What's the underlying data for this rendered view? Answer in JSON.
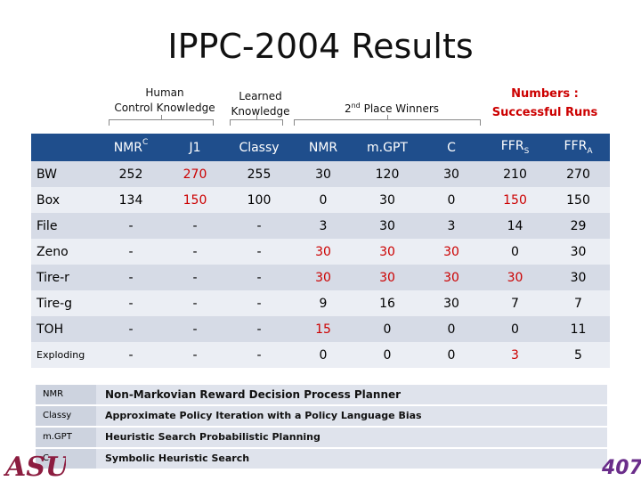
{
  "title": "IPPC-2004 Results",
  "headers": {
    "human_line1": "Human",
    "human_line2": "Control Knowledge",
    "learned_line1": "Learned",
    "learned_line2": "Knowledge",
    "second_place_sup": "nd",
    "second_place_pre": "2",
    "second_place_post": " Place Winners",
    "numbers_line1": "Numbers :",
    "numbers_line2": "Successful Runs"
  },
  "columns": [
    {
      "label": "NMR",
      "sup": "C",
      "sub": ""
    },
    {
      "label": "J1",
      "sup": "",
      "sub": ""
    },
    {
      "label": "Classy",
      "sup": "",
      "sub": ""
    },
    {
      "label": "NMR",
      "sup": "",
      "sub": ""
    },
    {
      "label": "m.GPT",
      "sup": "",
      "sub": ""
    },
    {
      "label": "C",
      "sup": "",
      "sub": ""
    },
    {
      "label": "FFR",
      "sup": "",
      "sub": "S"
    },
    {
      "label": "FFR",
      "sup": "",
      "sub": "A"
    }
  ],
  "rows": [
    {
      "name": "BW",
      "values": [
        "252",
        "270",
        "255",
        "30",
        "120",
        "30",
        "210",
        "270"
      ],
      "red": [
        1
      ]
    },
    {
      "name": "Box",
      "values": [
        "134",
        "150",
        "100",
        "0",
        "30",
        "0",
        "150",
        "150"
      ],
      "red": [
        1,
        6
      ]
    },
    {
      "name": "File",
      "values": [
        "-",
        "-",
        "-",
        "3",
        "30",
        "3",
        "14",
        "29"
      ],
      "red": []
    },
    {
      "name": "Zeno",
      "values": [
        "-",
        "-",
        "-",
        "30",
        "30",
        "30",
        "0",
        "30"
      ],
      "red": [
        3,
        4,
        5
      ]
    },
    {
      "name": "Tire-r",
      "values": [
        "-",
        "-",
        "-",
        "30",
        "30",
        "30",
        "30",
        "30"
      ],
      "red": [
        3,
        4,
        5,
        6
      ]
    },
    {
      "name": "Tire-g",
      "values": [
        "-",
        "-",
        "-",
        "9",
        "16",
        "30",
        "7",
        "7"
      ],
      "red": []
    },
    {
      "name": "TOH",
      "values": [
        "-",
        "-",
        "-",
        "15",
        "0",
        "0",
        "0",
        "11"
      ],
      "red": [
        3
      ]
    },
    {
      "name": "Exploding",
      "values": [
        "-",
        "-",
        "-",
        "0",
        "0",
        "0",
        "3",
        "5"
      ],
      "red": [
        6
      ]
    }
  ],
  "legend": [
    {
      "key": "NMR",
      "desc": "Non-Markovian Reward Decision Process Planner"
    },
    {
      "key": "Classy",
      "desc": "Approximate Policy Iteration with a Policy Language Bias"
    },
    {
      "key": "m.GPT",
      "desc": "Heuristic Search Probabilistic Planning"
    },
    {
      "key": "C",
      "desc": "Symbolic Heuristic Search"
    }
  ],
  "logos": {
    "left_text": "ASU",
    "right_text": "407"
  },
  "colors": {
    "header_blue": "#1f4e8c",
    "highlight_red": "#cc0000",
    "row_odd": "#d6dbe6",
    "row_even": "#ebeef4"
  }
}
